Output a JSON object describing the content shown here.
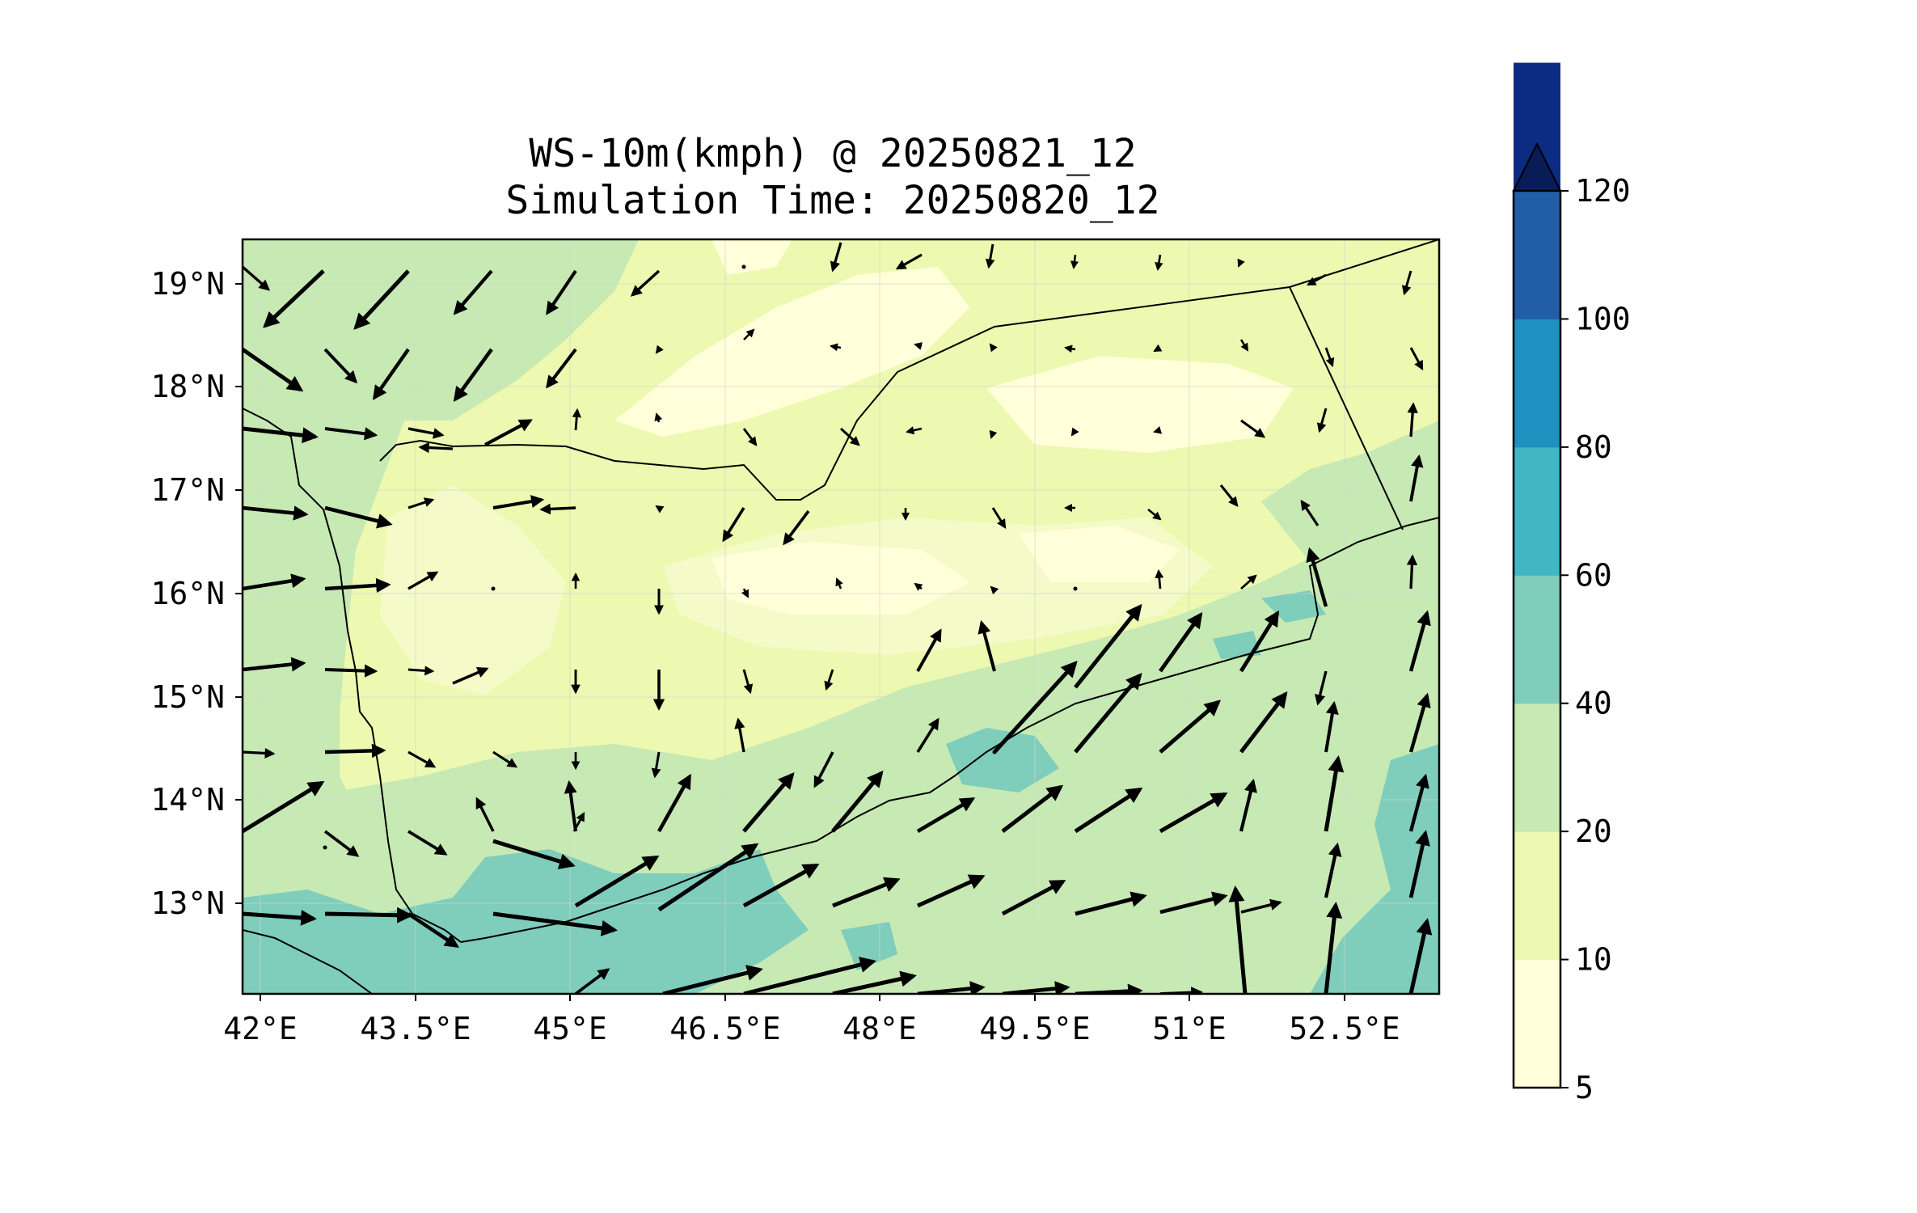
{
  "title": {
    "line1": "WS-10m(kmph) @ 20250821_12",
    "line2": "Simulation Time: 20250820_12"
  },
  "map": {
    "x_ticks": [
      "42°E",
      "43.5°E",
      "45°E",
      "46.5°E",
      "48°E",
      "49.5°E",
      "51°E",
      "52.5°E"
    ],
    "y_ticks": [
      "19°N",
      "18°N",
      "17°N",
      "16°N",
      "15°N",
      "14°N",
      "13°N"
    ],
    "lon_range": [
      41.9,
      53.8
    ],
    "lat_range": [
      12.1,
      19.4
    ],
    "arrow_color": "#000000"
  },
  "colorbar": {
    "levels": [
      "5",
      "10",
      "20",
      "40",
      "60",
      "80",
      "100",
      "120"
    ],
    "colors": [
      "#ffffd9",
      "#edf8b1",
      "#c7e9b4",
      "#7fcdbb",
      "#41b6c4",
      "#1d91c0",
      "#225ea8",
      "#0c2c84"
    ],
    "extend_color": "#081d58",
    "extend": "max"
  }
}
